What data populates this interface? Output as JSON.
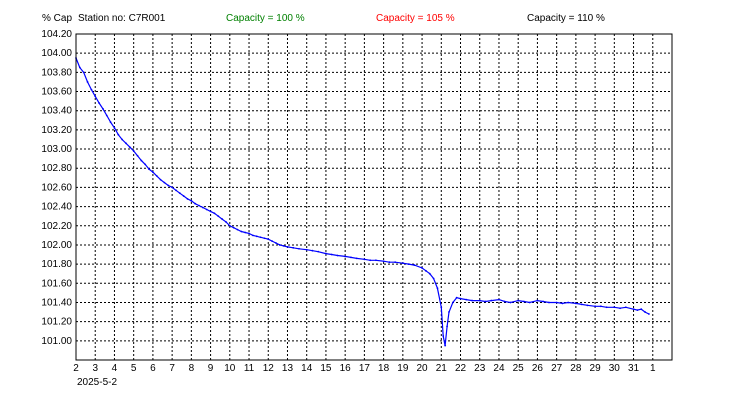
{
  "header": {
    "y_unit": "% Cap",
    "station": "Station no: C7R001",
    "cap100": {
      "label": "Capacity = 100 %",
      "color": "#008000"
    },
    "cap105": {
      "label": "Capacity = 105 %",
      "color": "#ff0000"
    },
    "cap110": {
      "label": "Capacity = 110 %",
      "color": "#000000"
    }
  },
  "chart_data": {
    "type": "line",
    "title": "",
    "xlabel": "",
    "ylabel": "% Cap",
    "start_date": "2025-5-2",
    "xlim": [
      2,
      33
    ],
    "ylim": [
      100.8,
      104.2
    ],
    "grid": true,
    "x_tick_labels": [
      "2",
      "3",
      "4",
      "5",
      "6",
      "7",
      "8",
      "9",
      "10",
      "11",
      "12",
      "13",
      "14",
      "15",
      "16",
      "17",
      "18",
      "19",
      "20",
      "21",
      "22",
      "23",
      "24",
      "25",
      "26",
      "27",
      "28",
      "29",
      "30",
      "31",
      "1"
    ],
    "y_tick_labels": [
      "104.20",
      "104.00",
      "103.80",
      "103.60",
      "103.40",
      "103.20",
      "103.00",
      "102.80",
      "102.60",
      "102.40",
      "102.20",
      "102.00",
      "101.80",
      "101.60",
      "101.40",
      "101.20",
      "101.00"
    ],
    "series": [
      {
        "color": "#0000ff",
        "x": [
          2.0,
          2.2,
          2.4,
          2.6,
          2.8,
          3.0,
          3.2,
          3.4,
          3.6,
          3.8,
          4.0,
          4.2,
          4.4,
          4.6,
          4.8,
          5.0,
          5.2,
          5.4,
          5.6,
          5.8,
          6.0,
          6.2,
          6.4,
          6.6,
          6.8,
          7.0,
          7.2,
          7.4,
          7.6,
          7.8,
          8.0,
          8.2,
          8.4,
          8.6,
          8.8,
          9.0,
          9.2,
          9.4,
          9.6,
          9.8,
          10.0,
          10.2,
          10.4,
          10.6,
          10.8,
          11.0,
          11.2,
          11.4,
          11.6,
          11.8,
          12.0,
          12.2,
          12.4,
          12.6,
          12.8,
          13.0,
          13.3,
          13.6,
          14.0,
          14.3,
          14.6,
          15.0,
          15.3,
          15.6,
          16.0,
          16.3,
          16.6,
          17.0,
          17.3,
          17.6,
          18.0,
          18.3,
          18.6,
          19.0,
          19.3,
          19.6,
          20.0,
          20.2,
          20.4,
          20.6,
          20.8,
          21.0,
          21.1,
          21.2,
          21.3,
          21.4,
          21.6,
          21.8,
          22.0,
          22.3,
          22.6,
          23.0,
          23.3,
          23.6,
          24.0,
          24.3,
          24.6,
          25.0,
          25.3,
          25.6,
          26.0,
          26.3,
          26.6,
          27.0,
          27.3,
          27.6,
          28.0,
          28.3,
          28.6,
          29.0,
          29.3,
          29.6,
          30.0,
          30.3,
          30.6,
          31.0,
          31.2,
          31.4,
          31.6,
          31.8
        ],
        "y": [
          103.95,
          103.85,
          103.8,
          103.7,
          103.62,
          103.55,
          103.48,
          103.42,
          103.35,
          103.28,
          103.22,
          103.15,
          103.1,
          103.06,
          103.02,
          102.98,
          102.93,
          102.88,
          102.84,
          102.79,
          102.76,
          102.72,
          102.68,
          102.65,
          102.62,
          102.6,
          102.57,
          102.54,
          102.51,
          102.48,
          102.46,
          102.43,
          102.41,
          102.39,
          102.37,
          102.35,
          102.33,
          102.3,
          102.27,
          102.24,
          102.2,
          102.18,
          102.16,
          102.14,
          102.13,
          102.12,
          102.1,
          102.09,
          102.08,
          102.07,
          102.06,
          102.04,
          102.02,
          102.0,
          101.99,
          101.98,
          101.97,
          101.96,
          101.95,
          101.94,
          101.93,
          101.91,
          101.9,
          101.89,
          101.88,
          101.87,
          101.86,
          101.85,
          101.84,
          101.84,
          101.83,
          101.82,
          101.82,
          101.81,
          101.8,
          101.79,
          101.76,
          101.73,
          101.7,
          101.65,
          101.55,
          101.35,
          101.05,
          100.95,
          101.15,
          101.3,
          101.4,
          101.45,
          101.44,
          101.43,
          101.42,
          101.42,
          101.41,
          101.42,
          101.43,
          101.41,
          101.4,
          101.42,
          101.41,
          101.4,
          101.42,
          101.41,
          101.4,
          101.4,
          101.39,
          101.4,
          101.39,
          101.38,
          101.37,
          101.36,
          101.36,
          101.35,
          101.35,
          101.34,
          101.35,
          101.33,
          101.32,
          101.33,
          101.3,
          101.28
        ]
      }
    ]
  }
}
